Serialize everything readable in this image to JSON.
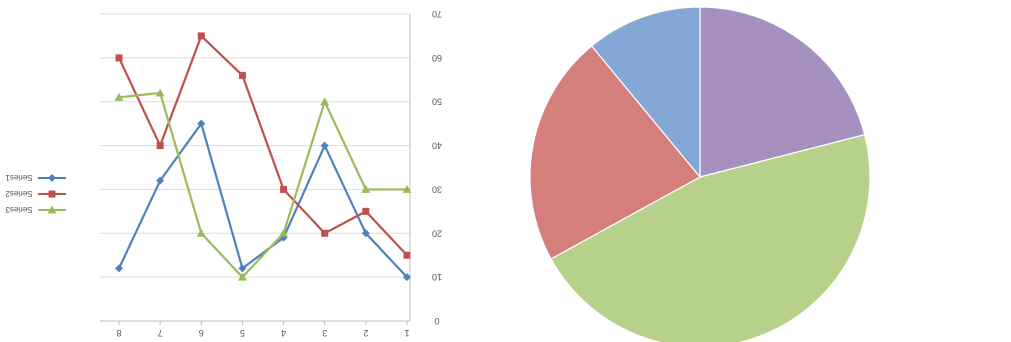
{
  "chart_data": [
    {
      "type": "line",
      "x": [
        8,
        7,
        6,
        5,
        4,
        3,
        2,
        1
      ],
      "x_ticks": [
        "8",
        "7",
        "6",
        "5",
        "4",
        "3",
        "2",
        "1"
      ],
      "y_ticks": [
        "0",
        "10",
        "20",
        "30",
        "40",
        "50",
        "60",
        "70"
      ],
      "ylim": [
        0,
        70
      ],
      "grid": true,
      "mirrored": true,
      "legend_position": "left",
      "series": [
        {
          "name": "Series1",
          "color": "#4f81bd",
          "marker": "diamond",
          "values": [
            12,
            32,
            45,
            12,
            19,
            40,
            20,
            10
          ]
        },
        {
          "name": "Series2",
          "color": "#c0504d",
          "marker": "square",
          "values": [
            60,
            40,
            65,
            56,
            30,
            20,
            25,
            15
          ]
        },
        {
          "name": "Series3",
          "color": "#9bbb59",
          "marker": "triangle",
          "values": [
            51,
            52,
            20,
            10,
            20,
            50,
            30,
            30
          ]
        }
      ]
    },
    {
      "type": "pie",
      "slices": [
        {
          "value": 21,
          "color": "#a590bf"
        },
        {
          "value": 46,
          "color": "#b7d08a"
        },
        {
          "value": 22,
          "color": "#d57f7d"
        },
        {
          "value": 11,
          "color": "#84a8d6"
        }
      ]
    }
  ]
}
